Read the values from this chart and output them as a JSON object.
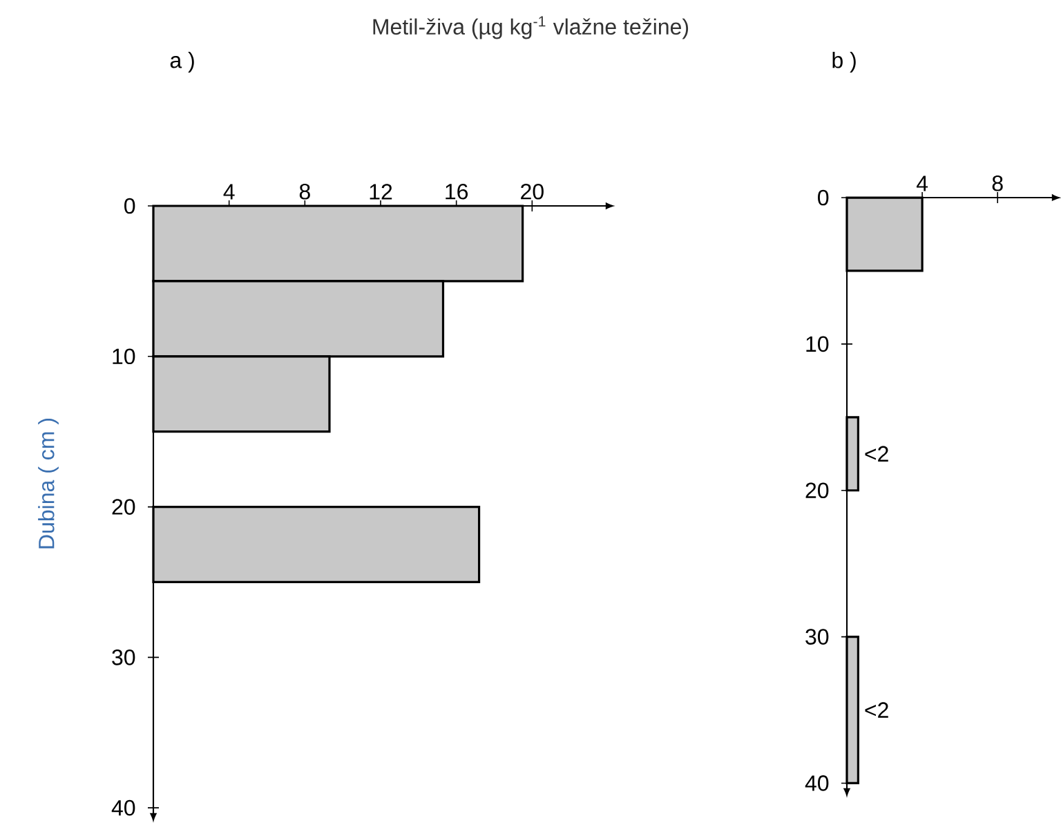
{
  "chart_data": [
    {
      "type": "histogram",
      "orientation": "horizontal",
      "title": "Metil-živa (µg kg$^{-1}$ vlažne težine)",
      "subtitle": "a )",
      "ylabel": "Dubina ( cm )",
      "color": "#c8c8c8",
      "bins": [
        0,
        5,
        10,
        15,
        20,
        25
      ],
      "values": [
        19.5,
        15.3,
        9.3,
        null,
        17.2
      ],
      "xlim": [
        0,
        24
      ],
      "xticks": [
        4,
        8,
        12,
        16,
        20
      ],
      "ylim": [
        40.5,
        0
      ],
      "yticks": [
        0,
        10,
        20,
        30,
        40
      ]
    },
    {
      "type": "histogram",
      "orientation": "horizontal",
      "title": "b )",
      "color": "#c8c8c8",
      "bins": [
        0,
        5,
        15,
        20,
        30,
        40
      ],
      "values": [
        4,
        null,
        0.6,
        null,
        0.6
      ],
      "value_labels": [
        null,
        null,
        "<2",
        null,
        "<2"
      ],
      "xlim": [
        0,
        11
      ],
      "xticks": [
        4,
        8
      ],
      "ylim": [
        40.5,
        0
      ],
      "yticks": [
        0,
        10,
        20,
        30,
        40
      ]
    }
  ]
}
